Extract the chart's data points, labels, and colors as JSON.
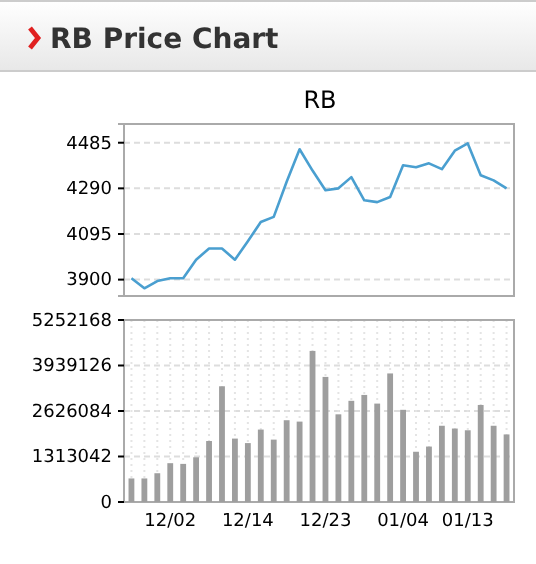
{
  "chart_data": [
    {
      "type": "line",
      "title": "RB Price Chart",
      "subtitle": "RB",
      "categories": [
        null,
        null,
        null,
        null,
        null,
        null,
        null,
        null,
        null,
        null,
        null,
        null,
        null,
        null,
        null,
        null,
        null,
        null,
        null,
        null,
        null,
        null,
        null,
        null,
        null,
        null,
        null,
        null,
        null,
        null
      ],
      "series": [
        {
          "color": "#4a9fd0",
          "values": [
            3906,
            3863,
            3894,
            3906,
            3906,
            3985,
            4033,
            4033,
            3985,
            4064,
            4146,
            4168,
            4318,
            4457,
            4366,
            4282,
            4290,
            4338,
            4239,
            4231,
            4253,
            4389,
            4380,
            4397,
            4372,
            4451,
            4482,
            4346,
            4324,
            4290
          ]
        }
      ],
      "ylim": [
        3830,
        4565
      ],
      "yticks": [
        3900,
        4095,
        4290,
        4485
      ],
      "grid": "y",
      "tick_labels": "y",
      "marker": "none"
    },
    {
      "type": "bar",
      "categories": [
        null,
        null,
        null,
        "12/02",
        null,
        null,
        null,
        null,
        null,
        "12/14",
        null,
        null,
        null,
        null,
        null,
        "12/23",
        null,
        null,
        null,
        null,
        null,
        "01/04",
        null,
        null,
        null,
        null,
        "01/13",
        null,
        null,
        null
      ],
      "series": [
        {
          "color": "#9e9e9e",
          "values": [
            680000,
            680000,
            830000,
            1120000,
            1100000,
            1290000,
            1760000,
            3340000,
            1830000,
            1700000,
            2090000,
            1800000,
            2360000,
            2320000,
            4360000,
            3610000,
            2530000,
            2920000,
            3090000,
            2840000,
            3710000,
            2660000,
            1450000,
            1600000,
            2200000,
            2120000,
            2070000,
            2800000,
            2200000,
            1950000
          ]
        }
      ],
      "ylim": [
        0,
        5252168
      ],
      "yticks": [
        0,
        1313042,
        2626084,
        3939126,
        5252168
      ],
      "grid": true
    }
  ]
}
